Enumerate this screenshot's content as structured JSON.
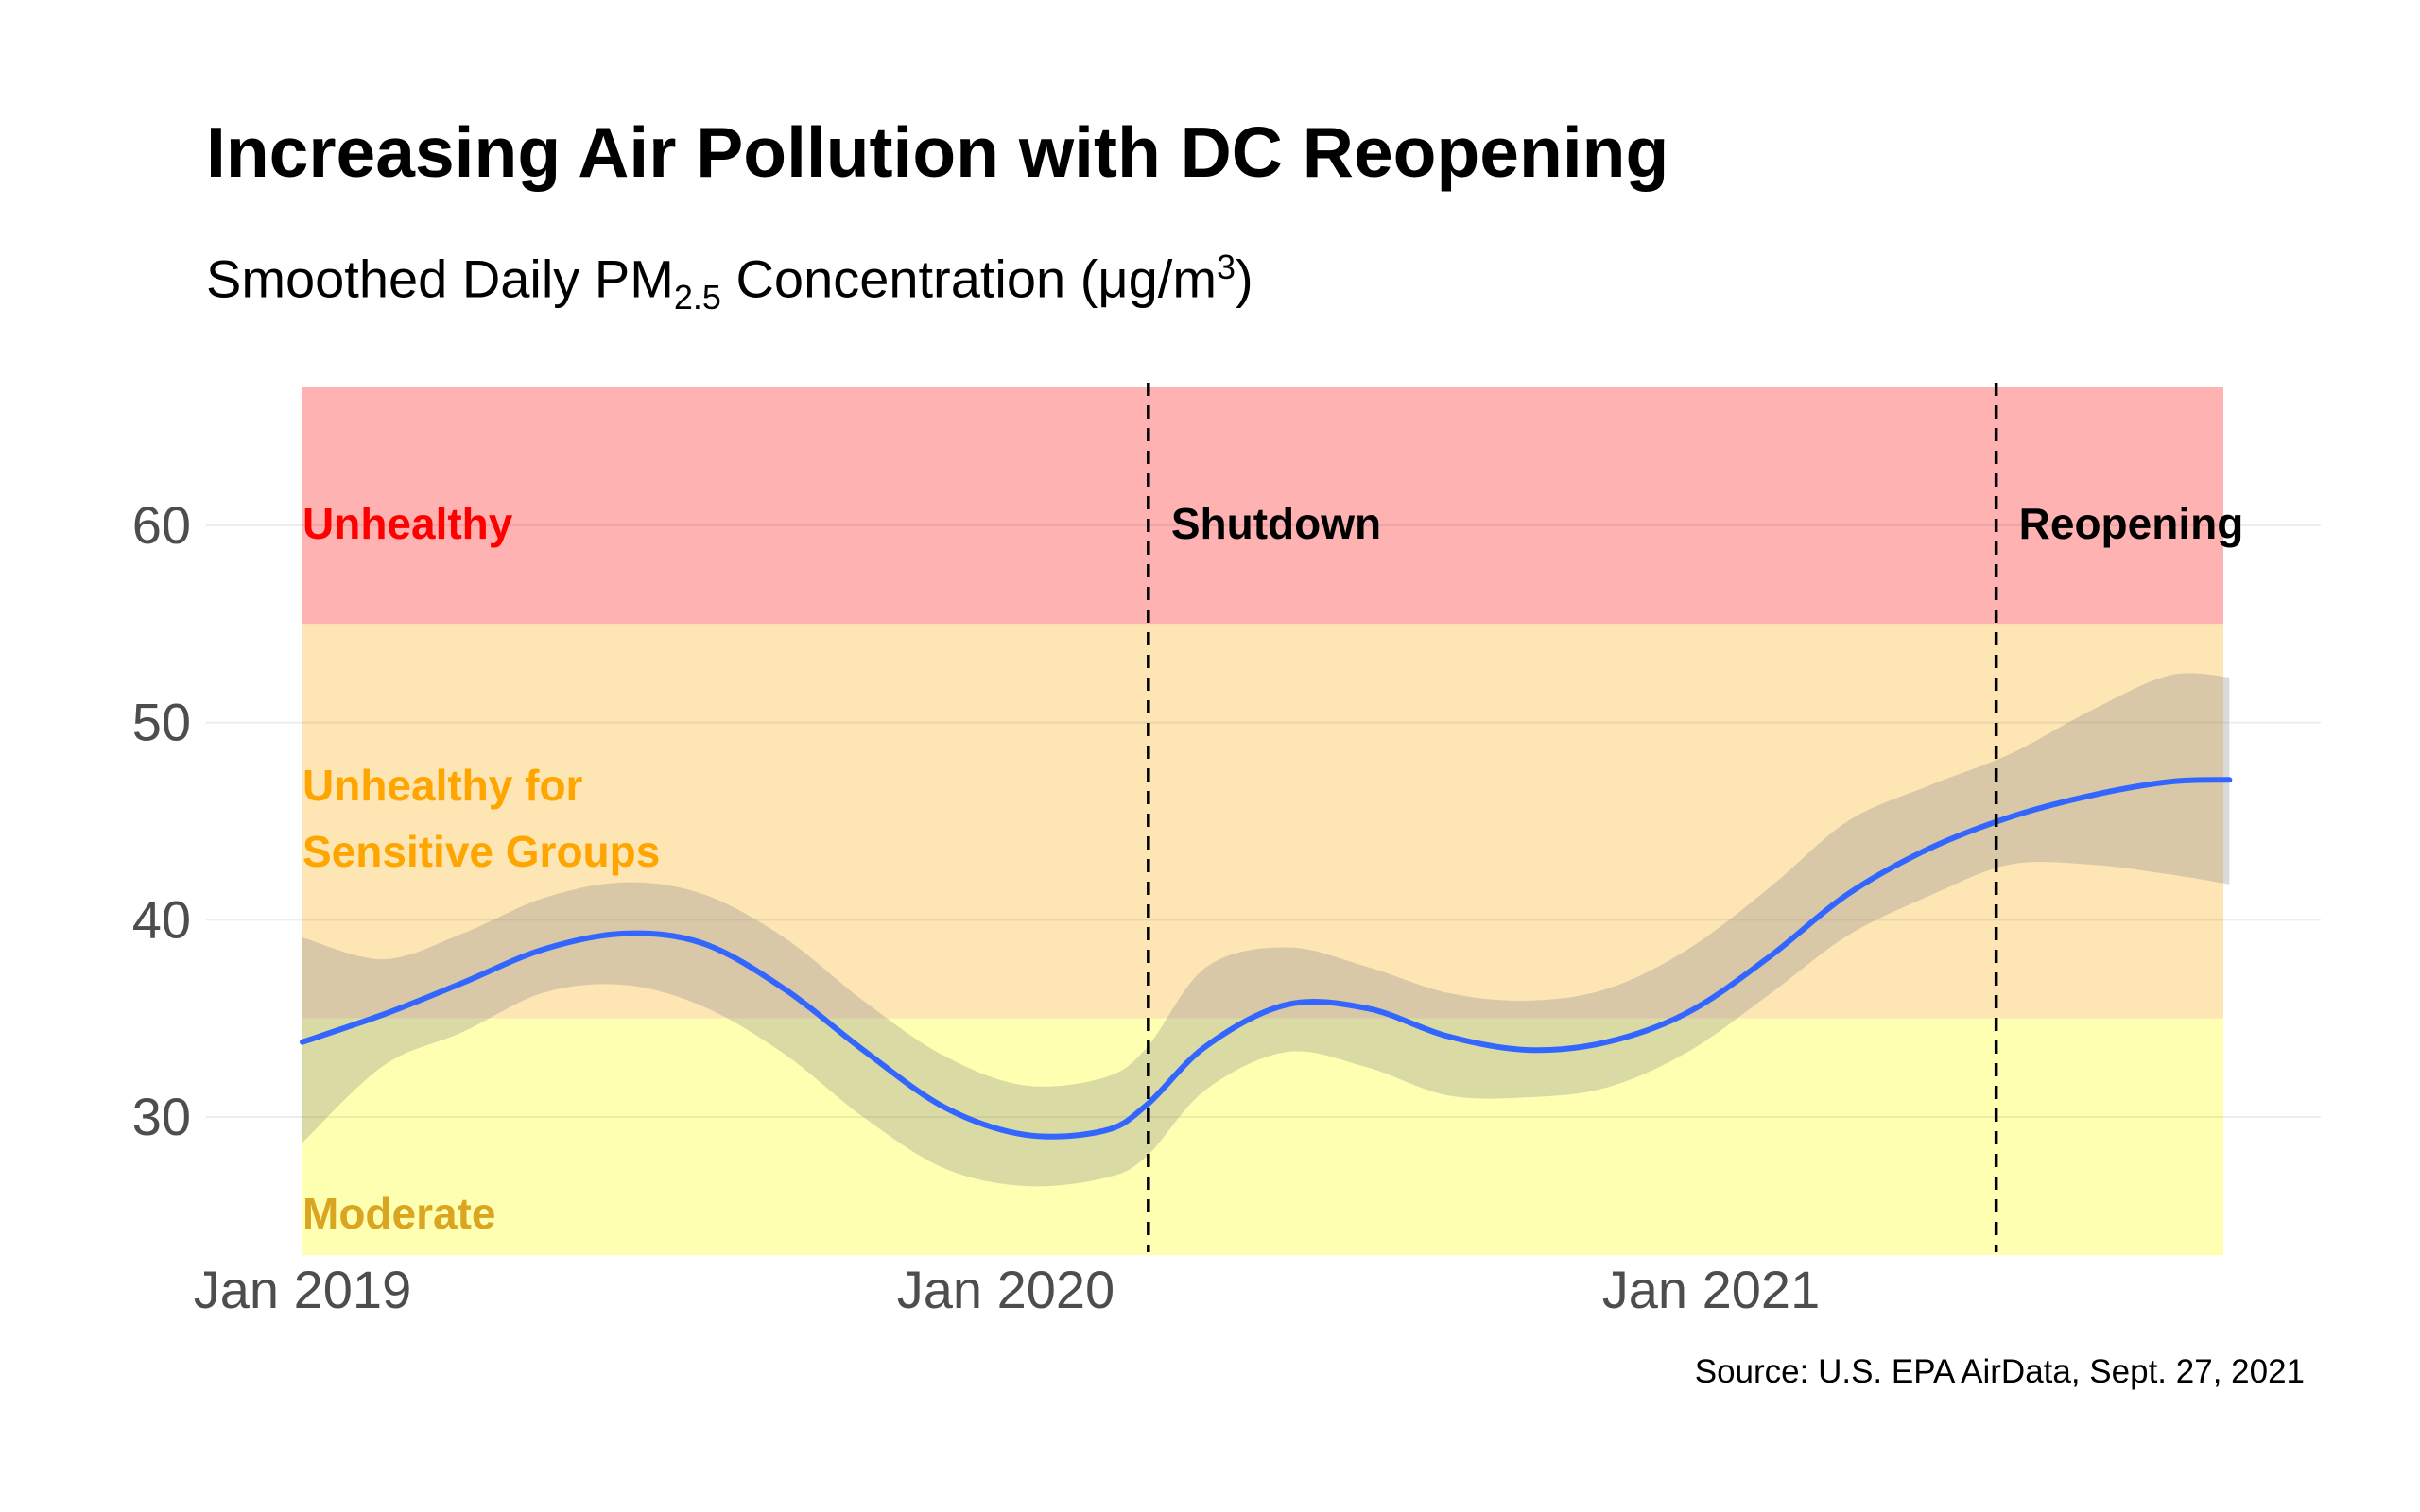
{
  "title": "Increasing Air Pollution with DC Reopening",
  "subtitle": {
    "prefix": "Smoothed Daily PM",
    "sub": "2.5",
    "middle": " Concentration (μg",
    "slash": "/",
    "unit": "m",
    "sup": "3",
    "suffix": ")"
  },
  "caption": "Source: U.S. EPA AirData, Sept. 27, 2021",
  "colors": {
    "unhealthy_band": "#ffb2b2",
    "sensitive_band": "#fde5b4",
    "moderate_band": "#ffffb2",
    "line": "#3366ff",
    "ribbon": "#8c8c8c",
    "unhealthy_label": "#ff0000",
    "sensitive_label": "#ffa500",
    "moderate_label": "#daa520",
    "grid": "#ebebeb"
  },
  "chart_data": {
    "type": "line",
    "x_axis": {
      "ticks": [
        "2019-01-01",
        "2020-01-01",
        "2021-01-01"
      ],
      "tick_labels": [
        "Jan 2019",
        "Jan 2020",
        "Jan 2021"
      ],
      "range": [
        "2019-01-01",
        "2021-09-27"
      ]
    },
    "y_axis": {
      "ticks": [
        30,
        40,
        50,
        60
      ],
      "tick_labels": [
        "30",
        "40",
        "50",
        "60"
      ],
      "range": [
        23,
        67
      ]
    },
    "grid": true,
    "bands": [
      {
        "label": "Unhealthy",
        "ymin": 55,
        "ymax": 67
      },
      {
        "label": "Unhealthy for\nSensitive Groups",
        "label_lines": [
          "Unhealthy for",
          "Sensitive Groups"
        ],
        "ymin": 35,
        "ymax": 55
      },
      {
        "label": "Moderate",
        "ymin": 23,
        "ymax": 35
      }
    ],
    "events": [
      {
        "label": "Shutdown",
        "date": "2020-03-15"
      },
      {
        "label": "Reopening",
        "date": "2021-05-29"
      }
    ],
    "series": [
      {
        "x": [
          "2019-01-01",
          "2019-02-12",
          "2019-03-25",
          "2019-05-06",
          "2019-06-17",
          "2019-07-28",
          "2019-09-08",
          "2019-10-19",
          "2019-11-30",
          "2020-01-11",
          "2020-02-21",
          "2020-03-14",
          "2020-04-14",
          "2020-05-26",
          "2020-07-07",
          "2020-08-17",
          "2020-09-28",
          "2020-11-08",
          "2020-12-20",
          "2021-01-31",
          "2021-03-13",
          "2021-04-24",
          "2021-06-05",
          "2021-07-17",
          "2021-08-27",
          "2021-09-27"
        ],
        "y": [
          33.8,
          35.2,
          36.8,
          38.5,
          39.3,
          38.8,
          36.5,
          33.4,
          30.5,
          29.1,
          29.3,
          30.6,
          33.6,
          35.7,
          35.5,
          34.1,
          33.4,
          33.8,
          35.3,
          38.1,
          41.3,
          43.6,
          45.2,
          46.3,
          47.0,
          47.1
        ],
        "lower": [
          28.7,
          32.6,
          34.3,
          36.3,
          36.7,
          35.6,
          33.2,
          30.0,
          27.4,
          26.5,
          26.9,
          28.0,
          31.4,
          33.3,
          32.5,
          31.1,
          31.0,
          31.5,
          33.3,
          36.2,
          39.2,
          41.2,
          42.8,
          42.8,
          42.3,
          41.8
        ],
        "upper": [
          39.1,
          38.0,
          39.3,
          41.1,
          41.9,
          41.3,
          39.1,
          35.9,
          33.1,
          31.6,
          32.0,
          33.5,
          37.6,
          38.6,
          37.6,
          36.3,
          35.9,
          36.5,
          38.5,
          41.6,
          45.0,
          46.8,
          48.4,
          50.6,
          52.4,
          52.3
        ]
      }
    ]
  }
}
